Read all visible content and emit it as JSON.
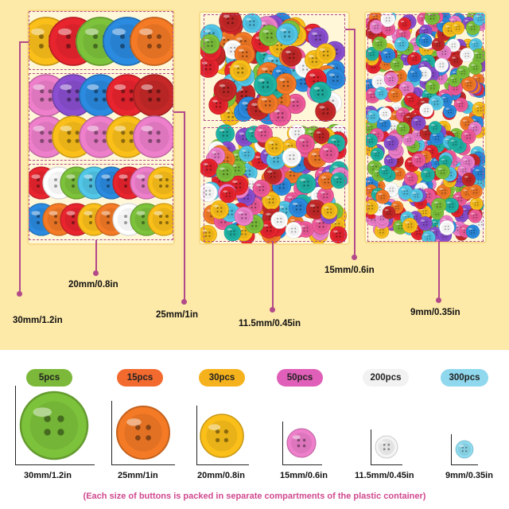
{
  "top_labels": {
    "size_30": "30mm/1.2in",
    "size_20": "20mm/0.8in",
    "size_25": "25mm/1in",
    "size_11_5": "11.5mm/0.45in",
    "size_15": "15mm/0.6in",
    "size_9": "9mm/0.35in"
  },
  "sizes": [
    {
      "count": "5pcs",
      "label": "30mm/1.2in",
      "pill_color": "#7cb83a",
      "button_color": "#7dc23b"
    },
    {
      "count": "15pcs",
      "label": "25mm/1in",
      "pill_color": "#f26a2e",
      "button_color": "#f47a26"
    },
    {
      "count": "30pcs",
      "label": "20mm/0.8in",
      "pill_color": "#f6b21c",
      "button_color": "#fbbf1a"
    },
    {
      "count": "50pcs",
      "label": "15mm/0.6in",
      "pill_color": "#e05fb8",
      "button_color": "#ee7fcb"
    },
    {
      "count": "200pcs",
      "label": "11.5mm/0.45in",
      "pill_color": "#f2f2f2",
      "button_color": "#f4f4f4"
    },
    {
      "count": "300pcs",
      "label": "9mm/0.35in",
      "pill_color": "#8fd8ee",
      "button_color": "#8fdcf0"
    }
  ],
  "footnote": "(Each size of buttons is packed in separate compartments of the plastic container)"
}
